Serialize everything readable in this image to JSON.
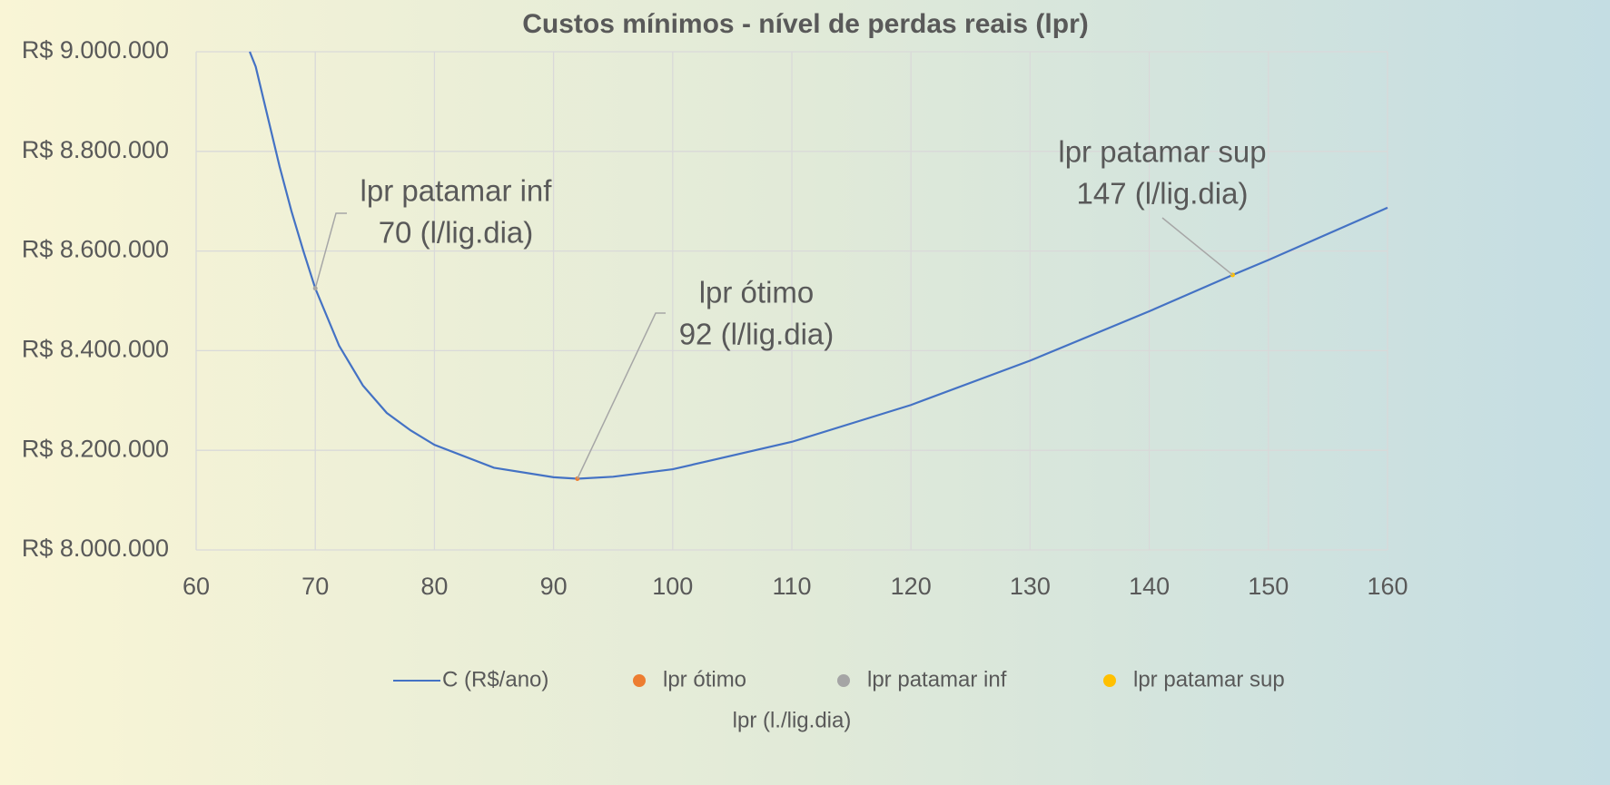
{
  "chart_data": {
    "type": "line",
    "title": "Custos mínimos - nível de perdas reais (lpr)",
    "xlabel": "lpr (l./lig.dia)",
    "xlim": [
      60,
      160
    ],
    "xticks": [
      60,
      70,
      80,
      90,
      100,
      110,
      120,
      130,
      140,
      150,
      160
    ],
    "ylim": [
      8000000,
      9000000
    ],
    "yticks": [
      {
        "value": 8000000,
        "label": "R$ 8.000.000"
      },
      {
        "value": 8200000,
        "label": "R$ 8.200.000"
      },
      {
        "value": 8400000,
        "label": "R$ 8.400.000"
      },
      {
        "value": 8600000,
        "label": "R$ 8.600.000"
      },
      {
        "value": 8800000,
        "label": "R$ 8.800.000"
      },
      {
        "value": 9000000,
        "label": "R$ 9.000.000"
      }
    ],
    "grid": true,
    "legend": "bottom",
    "series": [
      {
        "name": "C (R$/ano)",
        "color": "#4472c4",
        "x": [
          64.5,
          65,
          66,
          67,
          68,
          69,
          70,
          72,
          74,
          76,
          78,
          80,
          85,
          90,
          92,
          95,
          100,
          110,
          120,
          130,
          140,
          147,
          150,
          160
        ],
        "values": [
          9000000,
          8970000,
          8870000,
          8770000,
          8680000,
          8600000,
          8525000,
          8410000,
          8330000,
          8275000,
          8240000,
          8211000,
          8165000,
          8146000,
          8143000,
          8147000,
          8162000,
          8217000,
          8291000,
          8380000,
          8479000,
          8552000,
          8582000,
          8687000
        ]
      },
      {
        "name": "lpr ótimo",
        "color": "#ed7d31",
        "x": [
          92
        ],
        "values": [
          8143000
        ]
      },
      {
        "name": "lpr patamar inf",
        "color": "#a5a5a5",
        "x": [
          70
        ],
        "values": [
          8525000
        ]
      },
      {
        "name": "lpr patamar sup",
        "color": "#ffc000",
        "x": [
          147
        ],
        "values": [
          8552000
        ]
      }
    ],
    "annotations": [
      {
        "lines": [
          "lpr ótimo",
          "92 (l/lig.dia)"
        ]
      },
      {
        "lines": [
          "lpr patamar inf",
          "70 (l/lig.dia)"
        ]
      },
      {
        "lines": [
          "lpr patamar sup",
          "147 (l/lig.dia)"
        ]
      }
    ]
  }
}
